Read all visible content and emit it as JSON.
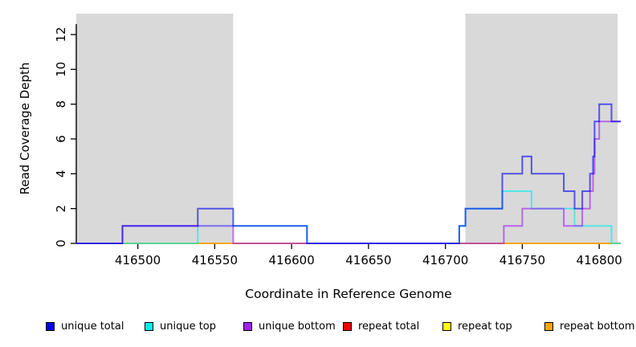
{
  "chart_data": {
    "type": "line",
    "subtype": "step_coverage_plot",
    "title": "",
    "xlabel": "Coordinate in Reference Genome",
    "ylabel": "Read Coverage Depth",
    "xlim": [
      416460,
      416814
    ],
    "ylim": [
      0,
      13.2
    ],
    "x_ticks": [
      416500,
      416550,
      416600,
      416650,
      416700,
      416750,
      416800
    ],
    "y_ticks": [
      0,
      2,
      4,
      6,
      8,
      10,
      12
    ],
    "grid": false,
    "legend_position": "bottom",
    "shaded_region_color": "#d9d9d9",
    "shaded_regions": [
      {
        "x0": 416460,
        "x1": 416562
      },
      {
        "x0": 416713,
        "x1": 416812
      }
    ],
    "line_opacity": 0.62,
    "line_width": 2,
    "draw_order": [
      "repeat total",
      "repeat top",
      "repeat bottom",
      "unique top",
      "unique bottom",
      "unique total"
    ],
    "series": [
      {
        "name": "unique total",
        "color": "#0000ee",
        "steps": [
          [
            416460,
            0
          ],
          [
            416490,
            1
          ],
          [
            416539,
            2
          ],
          [
            416562,
            1
          ],
          [
            416610,
            0
          ],
          [
            416709,
            1
          ],
          [
            416713,
            2
          ],
          [
            416737,
            4
          ],
          [
            416750,
            5
          ],
          [
            416756,
            4
          ],
          [
            416777,
            3
          ],
          [
            416784,
            2
          ],
          [
            416789,
            3
          ],
          [
            416794,
            4
          ],
          [
            416796,
            5
          ],
          [
            416797,
            7
          ],
          [
            416800,
            8
          ],
          [
            416808,
            7
          ]
        ]
      },
      {
        "name": "unique top",
        "color": "#00eeee",
        "steps": [
          [
            416460,
            0
          ],
          [
            416539,
            1
          ],
          [
            416610,
            0
          ],
          [
            416709,
            1
          ],
          [
            416713,
            2
          ],
          [
            416737,
            3
          ],
          [
            416756,
            2
          ],
          [
            416784,
            1
          ],
          [
            416808,
            0
          ]
        ]
      },
      {
        "name": "unique bottom",
        "color": "#a020f0",
        "steps": [
          [
            416460,
            0
          ],
          [
            416490,
            1
          ],
          [
            416562,
            0
          ],
          [
            416738,
            1
          ],
          [
            416750,
            2
          ],
          [
            416777,
            1
          ],
          [
            416789,
            2
          ],
          [
            416794,
            3
          ],
          [
            416796,
            4
          ],
          [
            416797,
            6
          ],
          [
            416800,
            7
          ]
        ]
      },
      {
        "name": "repeat total",
        "color": "#ee0000",
        "steps": [
          [
            416460,
            0
          ]
        ]
      },
      {
        "name": "repeat top",
        "color": "#ffff00",
        "steps": [
          [
            416460,
            0
          ]
        ]
      },
      {
        "name": "repeat bottom",
        "color": "#ffa500",
        "steps": [
          [
            416460,
            0
          ]
        ]
      }
    ],
    "legend": {
      "items": [
        {
          "label": "unique total",
          "color": "#0000ee"
        },
        {
          "label": "unique top",
          "color": "#00eeee"
        },
        {
          "label": "unique bottom",
          "color": "#a020f0"
        },
        {
          "label": "repeat total",
          "color": "#ee0000"
        },
        {
          "label": "repeat top",
          "color": "#ffff00"
        },
        {
          "label": "repeat bottom",
          "color": "#ffa500"
        }
      ]
    }
  }
}
